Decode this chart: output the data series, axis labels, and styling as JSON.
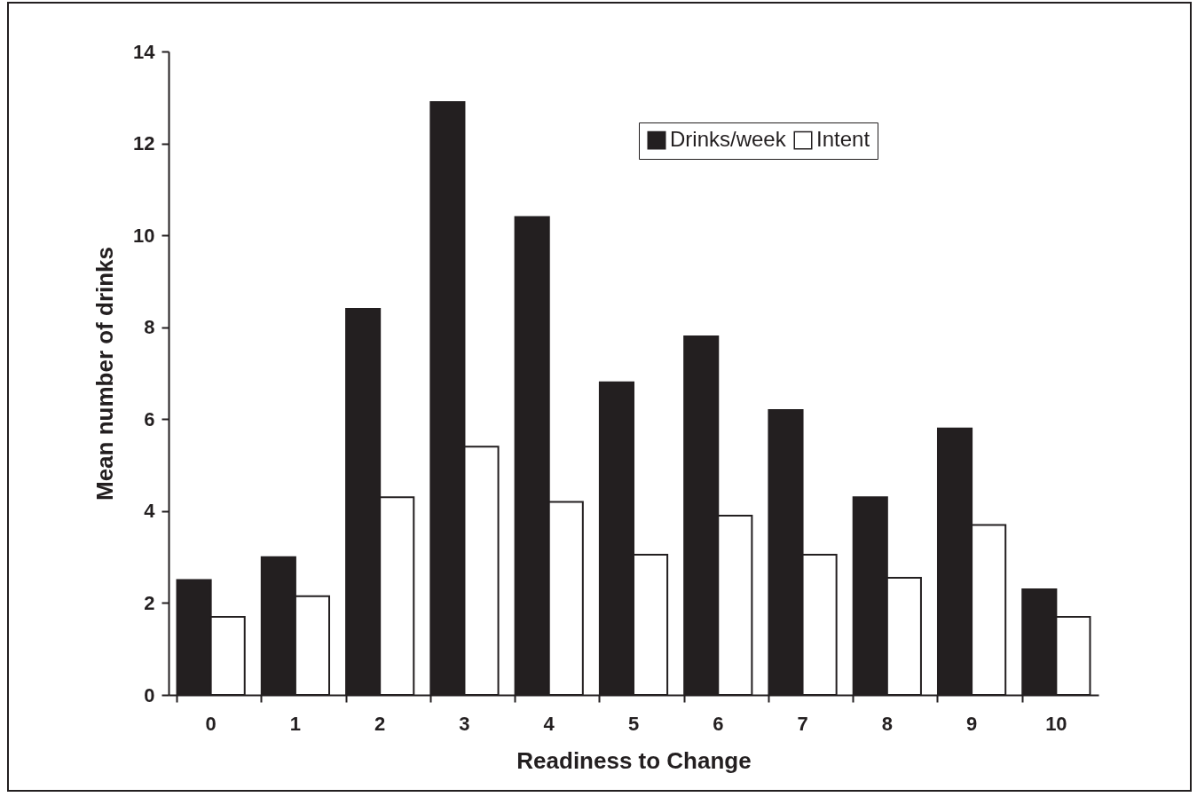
{
  "chart_data": {
    "type": "bar",
    "xlabel": "Readiness to Change",
    "ylabel": "Mean number of drinks",
    "categories": [
      "0",
      "1",
      "2",
      "3",
      "4",
      "5",
      "6",
      "7",
      "8",
      "9",
      "10"
    ],
    "series": [
      {
        "name": "Drinks/week",
        "color": "#231f20",
        "values": [
          2.5,
          3.0,
          8.4,
          12.9,
          10.4,
          6.8,
          7.8,
          6.2,
          4.3,
          5.8,
          2.3
        ]
      },
      {
        "name": "Intent",
        "color": "#ffffff",
        "values": [
          1.7,
          2.15,
          4.3,
          5.4,
          4.2,
          3.05,
          3.9,
          3.05,
          2.55,
          3.7,
          1.7
        ]
      }
    ],
    "ylim": [
      0,
      14
    ],
    "yticks": [
      0,
      2,
      4,
      6,
      8,
      10,
      12,
      14
    ],
    "grid": false,
    "legend": "top right"
  }
}
